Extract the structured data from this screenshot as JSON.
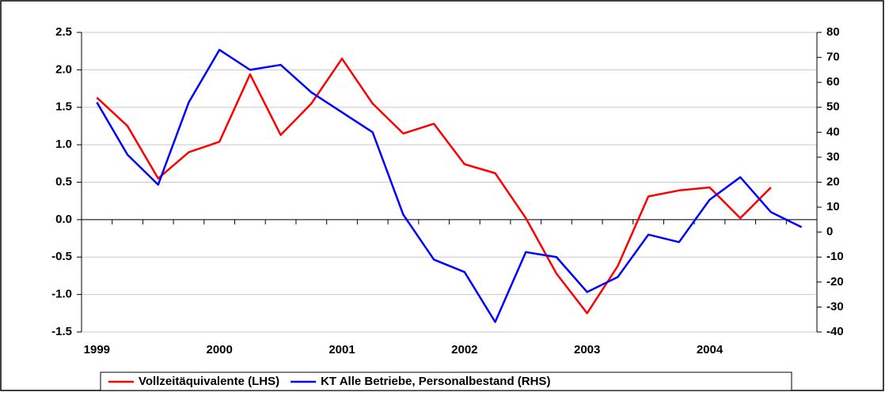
{
  "chart_data": {
    "type": "line",
    "categories": [
      "1999",
      null,
      null,
      null,
      "2000",
      null,
      null,
      null,
      "2001",
      null,
      null,
      null,
      "2002",
      null,
      null,
      null,
      "2003",
      null,
      null,
      null,
      "2004",
      null,
      null,
      null
    ],
    "series": [
      {
        "name": "Vollzeitäquivalente (LHS)",
        "color": "#ff0000",
        "axis": "y",
        "values": [
          1.63,
          1.25,
          0.55,
          0.9,
          1.04,
          1.94,
          1.13,
          1.55,
          2.15,
          1.55,
          1.15,
          1.28,
          0.74,
          0.62,
          0.02,
          -0.72,
          -1.25,
          -0.62,
          0.31,
          0.39,
          0.43,
          0.02,
          0.43,
          null
        ]
      },
      {
        "name": "KT Alle Betriebe, Personalbestand (RHS)",
        "color": "#0000ff",
        "axis": "y2",
        "values": [
          52,
          31,
          19,
          52,
          73,
          65,
          67,
          56,
          48,
          40,
          7,
          -11,
          -16,
          -36,
          -8,
          -10,
          -24,
          -18,
          -1,
          -4,
          13,
          22,
          8,
          2
        ]
      }
    ],
    "ylim": [
      -1.5,
      2.5
    ],
    "yticks": [
      -1.5,
      {
        "value": -1.0,
        "label": "-1.0"
      },
      -0.5,
      {
        "value": 0.0,
        "label": "0.0"
      },
      0.5,
      {
        "value": 1.0,
        "label": "1.0"
      },
      1.5,
      {
        "value": 2.0,
        "label": "2.0"
      },
      2.5
    ],
    "y2lim": [
      -40,
      80
    ],
    "y2ticks": [
      -40,
      -30,
      -20,
      -10,
      0,
      10,
      20,
      30,
      40,
      50,
      60,
      70,
      80
    ],
    "grid": true,
    "legend": "bottom"
  }
}
